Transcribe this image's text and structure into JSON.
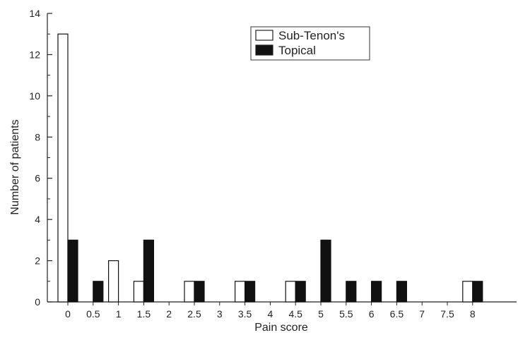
{
  "chart_data": {
    "type": "bar",
    "title": "",
    "xlabel": "Pain score",
    "ylabel": "Number of patients",
    "ylim": [
      0,
      14
    ],
    "yticks": [
      0,
      2,
      4,
      6,
      8,
      10,
      12,
      14
    ],
    "grid": false,
    "legend_position": "top-right",
    "categories": [
      "0",
      "0.5",
      "1",
      "1.5",
      "2",
      "2.5",
      "3",
      "3.5",
      "4",
      "4.5",
      "5",
      "5.5",
      "6",
      "6.5",
      "7",
      "7.5",
      "8"
    ],
    "series": [
      {
        "name": "Sub-Tenon's",
        "color": "#ffffff",
        "values": [
          13,
          0,
          2,
          1,
          0,
          1,
          0,
          1,
          0,
          1,
          0,
          0,
          0,
          0,
          0,
          0,
          1
        ]
      },
      {
        "name": "Topical",
        "color": "#111111",
        "values": [
          3,
          1,
          0,
          3,
          0,
          1,
          0,
          1,
          0,
          1,
          3,
          1,
          1,
          1,
          0,
          0,
          1
        ]
      }
    ]
  }
}
